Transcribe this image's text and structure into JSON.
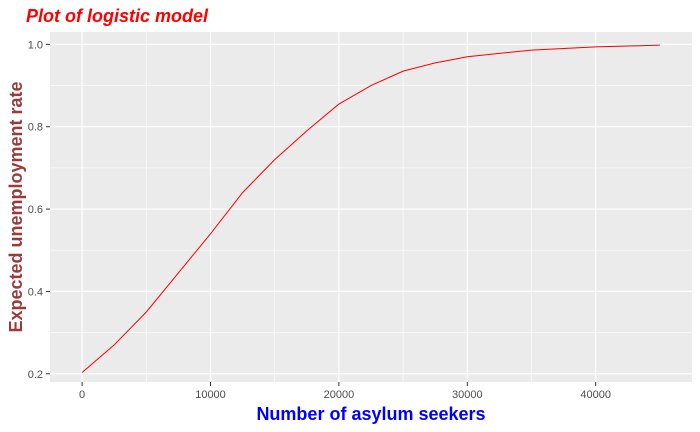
{
  "chart_data": {
    "type": "line",
    "title": "Plot of logistic model",
    "xlabel": "Number of asylum seekers",
    "ylabel": "Expected unemployment rate",
    "xlim": [
      -2500,
      47500
    ],
    "ylim": [
      0.18,
      1.03
    ],
    "x_ticks": [
      0,
      10000,
      20000,
      30000,
      40000
    ],
    "y_ticks": [
      0.2,
      0.4,
      0.6,
      0.8,
      1.0
    ],
    "x_tick_labels": [
      "0",
      "10000",
      "20000",
      "30000",
      "40000"
    ],
    "y_tick_labels": [
      "0.2",
      "0.4",
      "0.6",
      "0.8",
      "1.0"
    ],
    "grid": true,
    "series": [
      {
        "x": [
          0,
          2500,
          5000,
          7500,
          10000,
          12500,
          15000,
          17500,
          20000,
          22500,
          25000,
          27500,
          30000,
          32500,
          35000,
          37500,
          40000,
          42500,
          45000
        ],
        "y": [
          0.203,
          0.27,
          0.35,
          0.445,
          0.54,
          0.64,
          0.72,
          0.79,
          0.855,
          0.9,
          0.935,
          0.955,
          0.97,
          0.978,
          0.986,
          0.99,
          0.994,
          0.996,
          0.998
        ]
      }
    ],
    "colors": {
      "panel": "#EBEBEB",
      "grid": "#FFFFFF",
      "line": "#FF0000",
      "title": "#FF0000",
      "xlabel": "#0000FF",
      "ylabel": "#9C3A3A"
    }
  }
}
